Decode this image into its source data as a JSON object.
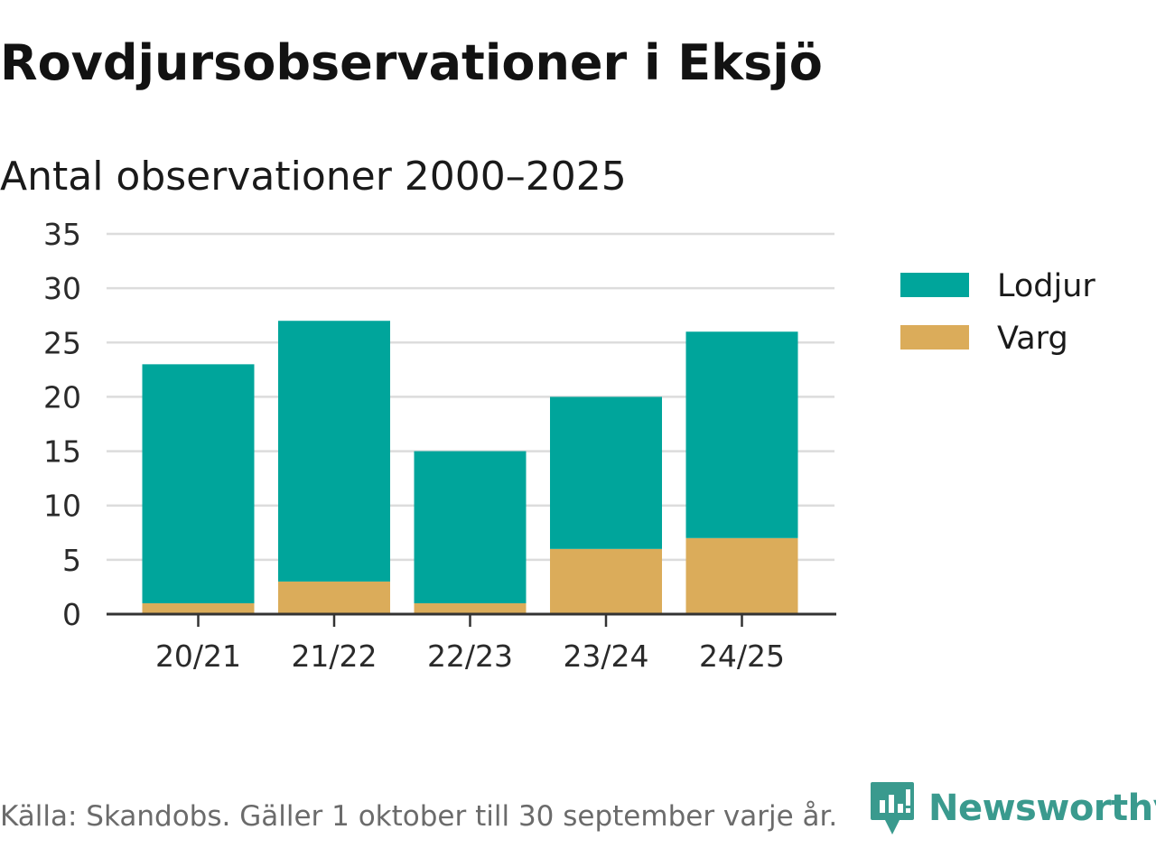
{
  "title": "Rovdjursobservationer i Eksjö",
  "subtitle": "Antal observationer 2000–2025",
  "footer": "Källa: Skandobs. Gäller 1 oktober till 30 september varje år.",
  "brand": {
    "name": "Newsworthy",
    "icon": "newsworthy-logo-icon",
    "color": "#3a9a8e"
  },
  "chart_data": {
    "type": "bar",
    "stacked": true,
    "categories": [
      "20/21",
      "21/22",
      "22/23",
      "23/24",
      "24/25"
    ],
    "series": [
      {
        "name": "Varg",
        "color": "#dbac5a",
        "values": [
          1,
          3,
          1,
          6,
          7
        ]
      },
      {
        "name": "Lodjur",
        "color": "#00a59b",
        "values": [
          22,
          24,
          14,
          14,
          19
        ]
      }
    ],
    "legend_order": [
      "Lodjur",
      "Varg"
    ],
    "ylim": [
      0,
      35
    ],
    "yticks": [
      0,
      5,
      10,
      15,
      20,
      25,
      30,
      35
    ],
    "grid": true,
    "legend_position": "right"
  }
}
